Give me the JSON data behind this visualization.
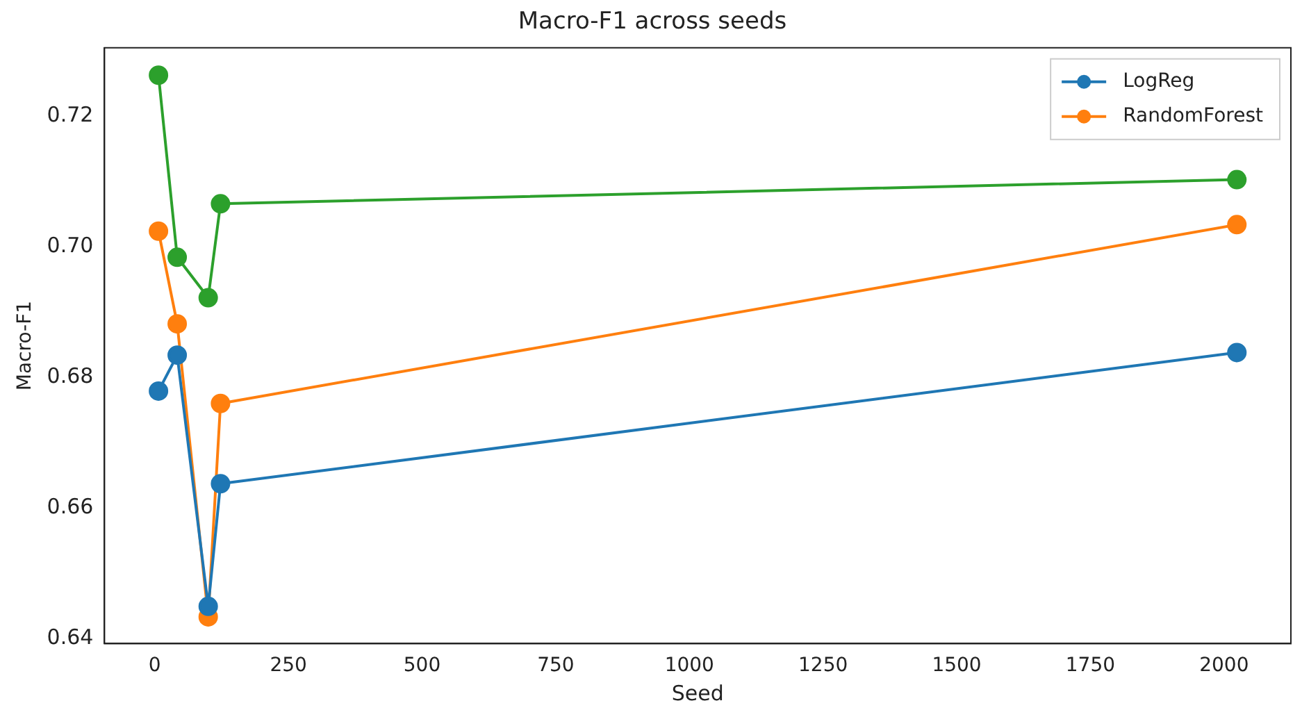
{
  "chart_data": {
    "type": "line",
    "title": "Macro-F1 across seeds",
    "xlabel": "Seed",
    "ylabel": "Macro-F1",
    "x": [
      7,
      42,
      100,
      123,
      2024
    ],
    "series": [
      {
        "name": "LogReg",
        "color": "#1f77b4",
        "values": [
          0.6779,
          0.6834,
          0.6449,
          0.6637,
          0.6838
        ]
      },
      {
        "name": "RandomForest",
        "color": "#ff7f0e",
        "values": [
          0.7024,
          0.6882,
          0.6433,
          0.676,
          0.7034
        ]
      },
      {
        "color": "#2ca02c",
        "values": [
          0.7263,
          0.6984,
          0.6922,
          0.7066,
          0.7103
        ]
      }
    ],
    "xlim": [
      -94,
      2125
    ],
    "xticks": [
      0,
      250,
      500,
      750,
      1000,
      1250,
      1500,
      1750,
      2000
    ],
    "ylim": [
      0.6392,
      0.7305
    ],
    "yticks": [
      {
        "value": 0.64,
        "label": "0.64"
      },
      {
        "value": 0.66,
        "label": "0.66"
      },
      {
        "value": 0.68,
        "label": "0.68"
      },
      {
        "value": 0.7,
        "label": "0.70"
      },
      {
        "value": 0.72,
        "label": "0.72"
      }
    ],
    "grid": false,
    "legend": "top right",
    "marker": "circle",
    "line_style": "solid"
  }
}
